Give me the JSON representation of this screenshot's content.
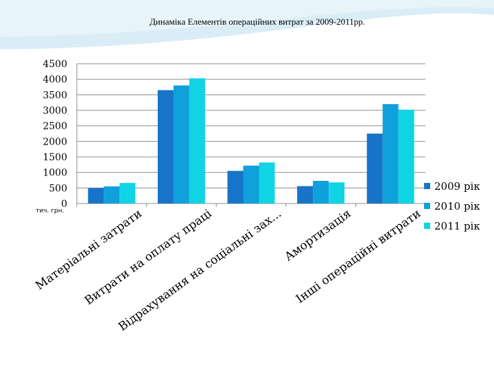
{
  "slide": {
    "title": "Динаміка Елементів операційних витрат за 2009-2011рр.",
    "unit_label": "тич. грн."
  },
  "colors": {
    "background_wave": "#d4eaf5",
    "axis": "#8c8c8c",
    "gridline": "#8c8c8c"
  },
  "chart_data": {
    "type": "bar",
    "title": "Динаміка Елементів операційних витрат за 2009-2011рр.",
    "xlabel": "",
    "ylabel": "тич. грн.",
    "ylim": [
      0,
      4500
    ],
    "yticks": [
      0,
      500,
      1000,
      1500,
      2000,
      2500,
      3000,
      3500,
      4000,
      4500
    ],
    "grid": true,
    "legend_position": "right",
    "categories": [
      "Матеріальні затрати",
      "Витрати на оплату праці",
      "Відрахування на соціальні зах...",
      "Амортизація",
      "Інші операційні витрати"
    ],
    "series": [
      {
        "name": "2009 рік",
        "color": "#1874c8",
        "values": [
          500,
          3650,
          1050,
          560,
          2250
        ]
      },
      {
        "name": "2010 рік",
        "color": "#10a0dc",
        "values": [
          550,
          3800,
          1220,
          730,
          3200
        ]
      },
      {
        "name": "2011 рік",
        "color": "#10d4e4",
        "values": [
          660,
          4030,
          1320,
          680,
          3020
        ]
      }
    ]
  }
}
